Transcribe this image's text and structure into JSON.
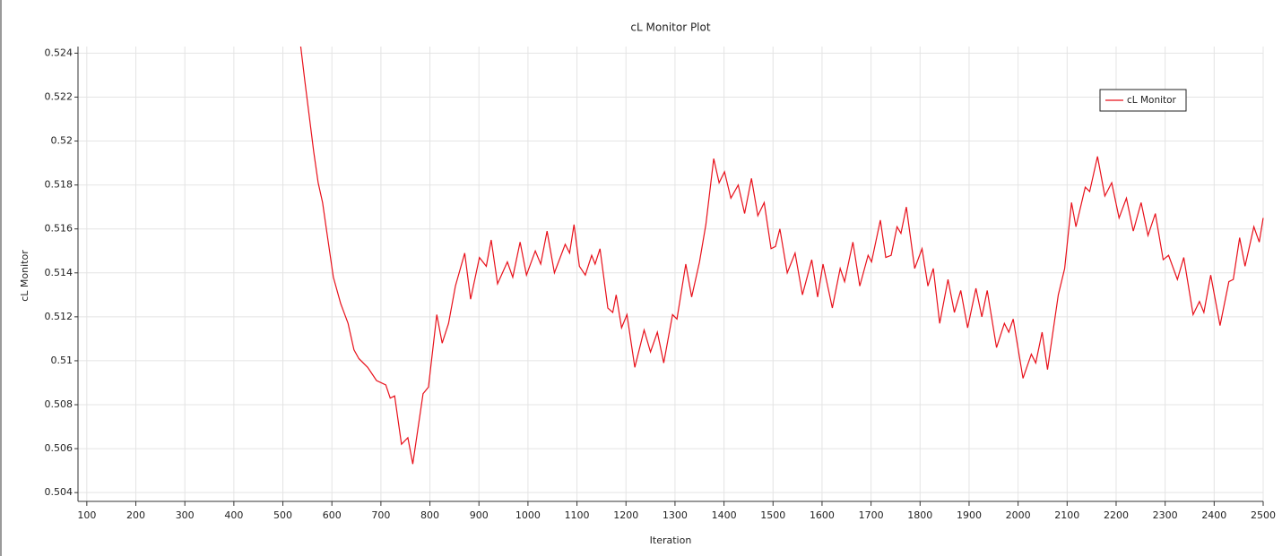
{
  "chart_data": {
    "type": "line",
    "title": "cL Monitor Plot",
    "x_label": "Iteration",
    "y_label": "cL Monitor",
    "x": [
      530,
      545,
      563,
      572,
      581,
      590,
      603,
      618,
      633,
      645,
      655,
      673,
      691,
      710,
      719,
      728,
      742,
      755,
      765,
      786,
      797,
      814,
      825,
      838,
      852,
      871,
      883,
      901,
      915,
      925,
      938,
      958,
      969,
      984,
      997,
      1015,
      1026,
      1039,
      1054,
      1076,
      1085,
      1094,
      1105,
      1117,
      1130,
      1137,
      1147,
      1163,
      1173,
      1180,
      1191,
      1202,
      1218,
      1237,
      1250,
      1264,
      1277,
      1295,
      1304,
      1322,
      1334,
      1350,
      1363,
      1379,
      1390,
      1401,
      1414,
      1429,
      1442,
      1456,
      1469,
      1482,
      1496,
      1505,
      1514,
      1529,
      1545,
      1560,
      1579,
      1591,
      1602,
      1621,
      1637,
      1646,
      1663,
      1677,
      1694,
      1701,
      1719,
      1730,
      1741,
      1753,
      1761,
      1772,
      1789,
      1804,
      1816,
      1827,
      1840,
      1857,
      1870,
      1883,
      1897,
      1914,
      1926,
      1937,
      1956,
      1972,
      1981,
      1990,
      2010,
      2027,
      2036,
      2049,
      2060,
      2082,
      2095,
      2109,
      2118,
      2137,
      2146,
      2162,
      2177,
      2191,
      2206,
      2221,
      2235,
      2251,
      2265,
      2280,
      2296,
      2307,
      2325,
      2338,
      2357,
      2370,
      2379,
      2393,
      2412,
      2430,
      2439,
      2452,
      2463,
      2481,
      2492,
      2500
    ],
    "series": [
      {
        "name": "cL Monitor",
        "color": "#e8101a",
        "values": [
          0.5255,
          0.5227,
          0.5195,
          0.5181,
          0.5172,
          0.5158,
          0.5138,
          0.5126,
          0.5117,
          0.5105,
          0.5101,
          0.5097,
          0.5091,
          0.5089,
          0.5083,
          0.5084,
          0.5062,
          0.5065,
          0.5053,
          0.5085,
          0.5088,
          0.5121,
          0.5108,
          0.5117,
          0.5134,
          0.5149,
          0.5128,
          0.5147,
          0.5143,
          0.5155,
          0.5135,
          0.5145,
          0.5138,
          0.5154,
          0.5139,
          0.515,
          0.5144,
          0.5159,
          0.514,
          0.5153,
          0.5149,
          0.5162,
          0.5143,
          0.5139,
          0.5148,
          0.5144,
          0.5151,
          0.5124,
          0.5122,
          0.513,
          0.5115,
          0.5121,
          0.5097,
          0.5114,
          0.5104,
          0.5113,
          0.5099,
          0.5121,
          0.5119,
          0.5144,
          0.5129,
          0.5145,
          0.5162,
          0.5192,
          0.5181,
          0.5186,
          0.5174,
          0.518,
          0.5167,
          0.5183,
          0.5166,
          0.5172,
          0.5151,
          0.5152,
          0.516,
          0.514,
          0.5149,
          0.513,
          0.5146,
          0.5129,
          0.5144,
          0.5124,
          0.5142,
          0.5136,
          0.5154,
          0.5134,
          0.5148,
          0.5145,
          0.5164,
          0.5147,
          0.5148,
          0.5161,
          0.5158,
          0.517,
          0.5142,
          0.5151,
          0.5134,
          0.5142,
          0.5117,
          0.5137,
          0.5122,
          0.5132,
          0.5115,
          0.5133,
          0.512,
          0.5132,
          0.5106,
          0.5117,
          0.5113,
          0.5119,
          0.5092,
          0.5103,
          0.5099,
          0.5113,
          0.5096,
          0.513,
          0.5142,
          0.5172,
          0.5161,
          0.5179,
          0.5177,
          0.5193,
          0.5175,
          0.5181,
          0.5165,
          0.5174,
          0.5159,
          0.5172,
          0.5157,
          0.5167,
          0.5146,
          0.5148,
          0.5137,
          0.5147,
          0.5121,
          0.5127,
          0.5122,
          0.5139,
          0.5116,
          0.5136,
          0.5137,
          0.5156,
          0.5143,
          0.5161,
          0.5154,
          0.5165
        ]
      }
    ],
    "xlim": [
      82,
      2500
    ],
    "ylim": [
      0.5036,
      0.5243
    ],
    "xticks": [
      100,
      200,
      300,
      400,
      500,
      600,
      700,
      800,
      900,
      1000,
      1100,
      1200,
      1300,
      1400,
      1500,
      1600,
      1700,
      1800,
      1900,
      2000,
      2100,
      2200,
      2300,
      2400,
      2500
    ],
    "yticks": [
      0.504,
      0.506,
      0.508,
      0.51,
      0.512,
      0.514,
      0.516,
      0.518,
      0.52,
      0.522,
      0.524
    ],
    "grid": true,
    "legend": "upper right"
  }
}
